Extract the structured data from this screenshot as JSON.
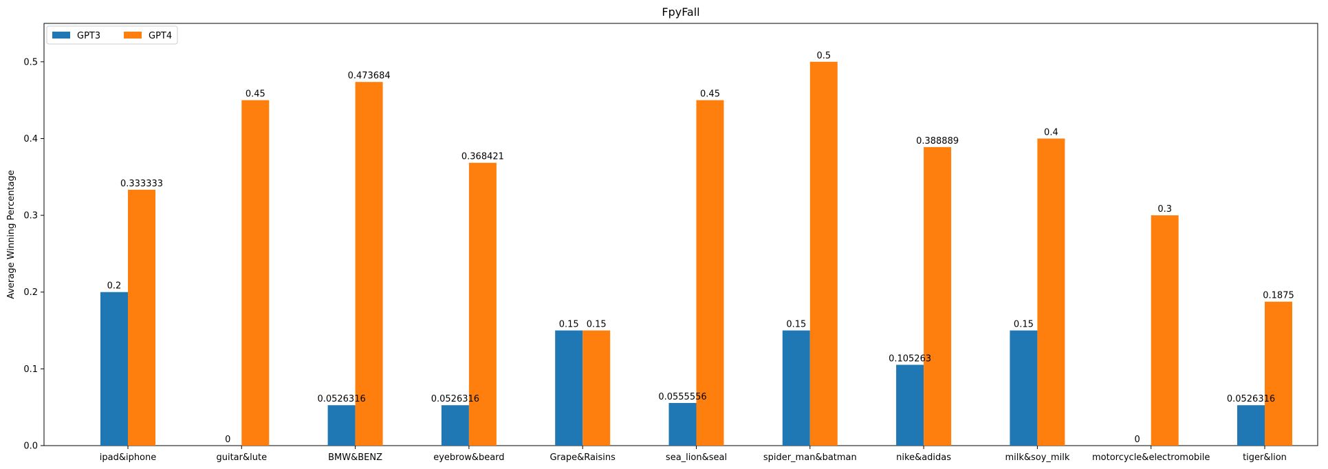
{
  "chart_data": {
    "type": "bar",
    "title": "FpyFall",
    "xlabel": "",
    "ylabel": "Average Winning Percentage",
    "ylim": [
      0,
      0.55
    ],
    "yticks": [
      0.0,
      0.1,
      0.2,
      0.3,
      0.4,
      0.5
    ],
    "ytick_labels": [
      "0.0",
      "0.1",
      "0.2",
      "0.3",
      "0.4",
      "0.5"
    ],
    "grid": false,
    "legend_placement": "top-left",
    "categories": [
      "ipad&iphone",
      "guitar&lute",
      "BMW&BENZ",
      "eyebrow&beard",
      "Grape&Raisins",
      "sea_lion&seal",
      "spider_man&batman",
      "nike&adidas",
      "milk&soy_milk",
      "motorcycle&electromobile",
      "tiger&lion"
    ],
    "series": [
      {
        "name": "GPT3",
        "color": "#1f77b4",
        "values": [
          0.2,
          0,
          0.0526316,
          0.0526316,
          0.15,
          0.0555556,
          0.15,
          0.105263,
          0.15,
          0,
          0.0526316
        ],
        "labels": [
          "0.2",
          "0",
          "0.0526316",
          "0.0526316",
          "0.15",
          "0.0555556",
          "0.15",
          "0.105263",
          "0.15",
          "0",
          "0.0526316"
        ]
      },
      {
        "name": "GPT4",
        "color": "#ff7f0e",
        "values": [
          0.333333,
          0.45,
          0.473684,
          0.368421,
          0.15,
          0.45,
          0.5,
          0.388889,
          0.4,
          0.3,
          0.1875
        ],
        "labels": [
          "0.333333",
          "0.45",
          "0.473684",
          "0.368421",
          "0.15",
          "0.45",
          "0.5",
          "0.388889",
          "0.4",
          "0.3",
          "0.1875"
        ]
      }
    ]
  }
}
